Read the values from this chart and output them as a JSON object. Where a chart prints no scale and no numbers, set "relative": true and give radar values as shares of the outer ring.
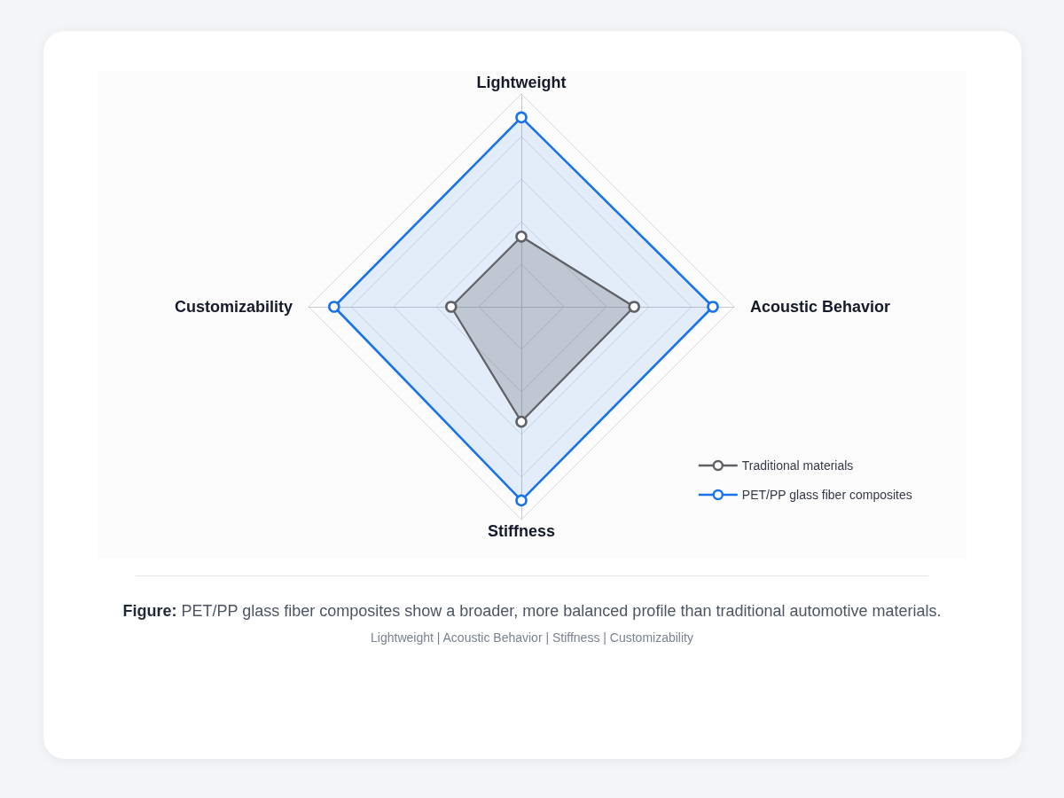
{
  "chart_data": {
    "type": "radar",
    "relative": true,
    "grid": true,
    "marker": "circle",
    "legend": "bottom right",
    "categories": [
      "Lightweight",
      "Acoustic Behavior",
      "Stiffness",
      "Customizability"
    ],
    "series": [
      {
        "name": "Traditional materials",
        "color": "#5f6166",
        "values": [
          0.33,
          0.53,
          0.54,
          0.33
        ]
      },
      {
        "name": "PET/PP glass fiber composites",
        "color": "#1a73e8",
        "values": [
          0.89,
          0.9,
          0.91,
          0.88
        ]
      }
    ],
    "annotations": [
      "Figure: PET/PP glass fiber composites show a broader, more balanced profile than traditional automotive materials.",
      "Lightweight | Acoustic Behavior | Stiffness | Customizability"
    ]
  }
}
